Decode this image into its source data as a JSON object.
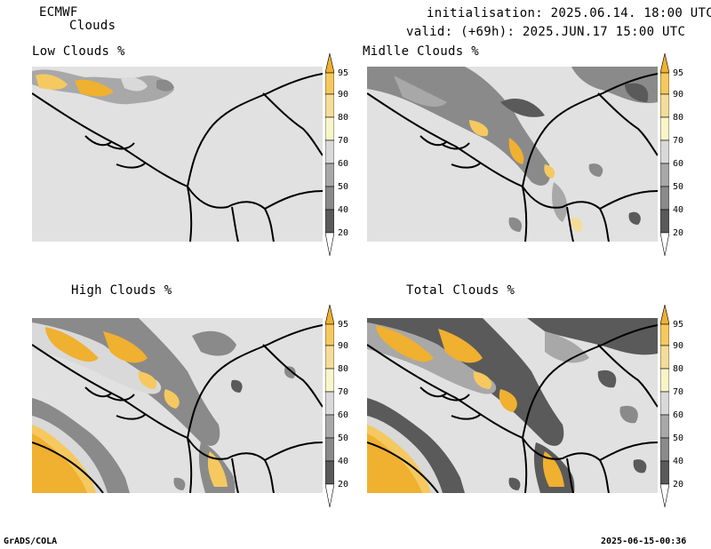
{
  "header": {
    "model": "ECMWF",
    "product": "Clouds",
    "init": "initialisation: 2025.06.14. 18:00 UTC",
    "valid": "valid: (+69h): 2025.JUN.17 15:00 UTC"
  },
  "panels": [
    {
      "title": "Low Clouds %"
    },
    {
      "title": "Midlle Clouds %"
    },
    {
      "title": "High Clouds %"
    },
    {
      "title": "Total Clouds %"
    }
  ],
  "colorbar": {
    "levels": [
      "95",
      "90",
      "80",
      "70",
      "60",
      "50",
      "40",
      "20"
    ],
    "colors": [
      "#f0b030",
      "#f5c960",
      "#f5dc98",
      "#f8f5c8",
      "#d9d9d9",
      "#a8a8a8",
      "#8a8a8a",
      "#5a5a5a",
      "#3c3c3c"
    ]
  },
  "footer": {
    "left": "GrADS/COLA",
    "right": "2025-06-15-00:36"
  }
}
